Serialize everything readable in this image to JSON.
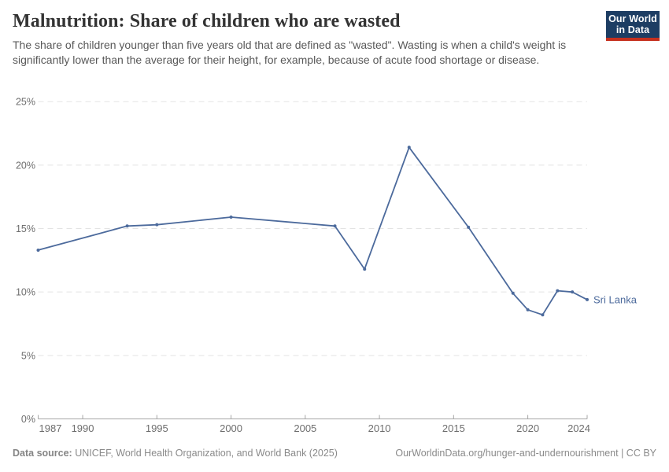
{
  "header": {
    "title": "Malnutrition: Share of children who are wasted",
    "subtitle": "The share of children younger than five years old that are defined as \"wasted\". Wasting is when a child's weight is significantly lower than the average for their height, for example, because of acute food shortage or disease.",
    "logo": {
      "line1": "Our World",
      "line2": "in Data",
      "bg_color": "#1d3d63",
      "accent_color": "#c5301e"
    }
  },
  "chart_data": {
    "type": "line",
    "title": "Malnutrition: Share of children who are wasted",
    "entity_label": "Sri Lanka",
    "series": [
      {
        "name": "Sri Lanka",
        "color": "#4C6A9C",
        "x": [
          1987,
          1993,
          1995,
          2000,
          2007,
          2009,
          2012,
          2016,
          2019,
          2020,
          2021,
          2022,
          2023,
          2024
        ],
        "values": [
          13.3,
          15.2,
          15.3,
          15.9,
          15.2,
          11.8,
          21.4,
          15.1,
          9.9,
          8.6,
          8.2,
          10.1,
          10.0,
          9.4
        ]
      }
    ],
    "xlabel": "",
    "ylabel": "",
    "xlim": [
      1987,
      2024
    ],
    "ylim": [
      0,
      25
    ],
    "x_ticks": [
      1987,
      1990,
      1995,
      2000,
      2005,
      2010,
      2015,
      2020,
      2024
    ],
    "y_ticks": [
      0,
      5,
      10,
      15,
      20,
      25
    ],
    "y_tick_suffix": "%",
    "grid": "horizontal-dashed",
    "legend_position": "end-of-line-label"
  },
  "footer": {
    "source_label": "Data source:",
    "source_text": "UNICEF, World Health Organization, and World Bank (2025)",
    "link_text": "OurWorldinData.org/hunger-and-undernourishment | CC BY"
  }
}
